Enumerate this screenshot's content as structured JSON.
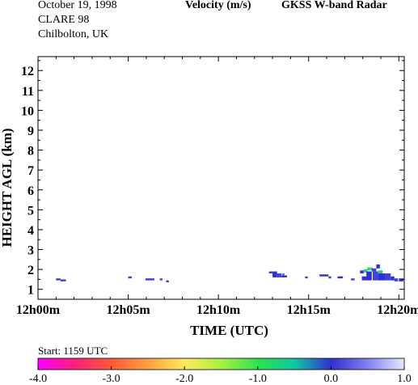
{
  "header": {
    "date": "October  19, 1998",
    "campaign": "CLARE 98",
    "site": "Chilbolton, UK",
    "quantity": "Velocity (m/s)",
    "instrument": "GKSS  W-band Radar"
  },
  "start_label": "Start: 1159 UTC",
  "chart_data": {
    "type": "heatmap",
    "title": "Velocity (m/s)",
    "xlabel": "TIME (UTC)",
    "ylabel": "HEIGHT AGL (km)",
    "xlim_min": [
      0,
      20.3
    ],
    "ylim_km": [
      0.5,
      12.7
    ],
    "x_ticks": [
      {
        "min": 0,
        "label": "12h00m"
      },
      {
        "min": 5,
        "label": "12h05m"
      },
      {
        "min": 10,
        "label": "12h10m"
      },
      {
        "min": 15,
        "label": "12h15m"
      },
      {
        "min": 20,
        "label": "12h20m"
      }
    ],
    "y_ticks": [
      1,
      2,
      3,
      4,
      5,
      6,
      7,
      8,
      9,
      10,
      11,
      12
    ],
    "colorbar": {
      "ticks": [
        "-4.0",
        "-3.0",
        "-2.0",
        "-1.0",
        "0.0",
        "1.0"
      ],
      "range": [
        -4,
        1
      ],
      "stops": [
        {
          "v": -4.0,
          "c": "#ff00ff"
        },
        {
          "v": -3.5,
          "c": "#ff1f7a"
        },
        {
          "v": -3.0,
          "c": "#ff5a3a"
        },
        {
          "v": -2.5,
          "c": "#ffa040"
        },
        {
          "v": -2.0,
          "c": "#ffe860"
        },
        {
          "v": -1.5,
          "c": "#a8f040"
        },
        {
          "v": -1.0,
          "c": "#30e050"
        },
        {
          "v": -0.5,
          "c": "#10c8a0"
        },
        {
          "v": 0.0,
          "c": "#3030d0"
        },
        {
          "v": 0.5,
          "c": "#8080f0"
        },
        {
          "v": 1.0,
          "c": "#e8e8ff"
        }
      ]
    },
    "echo_patches": [
      {
        "t0": 1.0,
        "t1": 1.25,
        "h0": 1.45,
        "h1": 1.55,
        "v": 0.1
      },
      {
        "t0": 1.25,
        "t1": 1.55,
        "h0": 1.4,
        "h1": 1.5,
        "v": 0.1
      },
      {
        "t0": 5.0,
        "t1": 5.2,
        "h0": 1.55,
        "h1": 1.65,
        "v": 0.1
      },
      {
        "t0": 5.95,
        "t1": 6.45,
        "h0": 1.45,
        "h1": 1.55,
        "v": 0.1
      },
      {
        "t0": 6.75,
        "t1": 6.9,
        "h0": 1.45,
        "h1": 1.55,
        "v": 0.1
      },
      {
        "t0": 7.1,
        "t1": 7.25,
        "h0": 1.35,
        "h1": 1.45,
        "v": 0.1
      },
      {
        "t0": 12.8,
        "t1": 13.0,
        "h0": 1.8,
        "h1": 1.9,
        "v": 0.1
      },
      {
        "t0": 13.0,
        "t1": 13.25,
        "h0": 1.6,
        "h1": 1.9,
        "v": 0.0
      },
      {
        "t0": 13.25,
        "t1": 13.5,
        "h0": 1.6,
        "h1": 1.8,
        "v": 0.1
      },
      {
        "t0": 13.5,
        "t1": 13.8,
        "h0": 1.6,
        "h1": 1.7,
        "v": 0.0
      },
      {
        "t0": 13.55,
        "t1": 13.65,
        "h0": 1.7,
        "h1": 1.8,
        "v": 0.1
      },
      {
        "t0": 14.8,
        "t1": 14.95,
        "h0": 1.55,
        "h1": 1.65,
        "v": 0.1
      },
      {
        "t0": 15.6,
        "t1": 16.1,
        "h0": 1.65,
        "h1": 1.75,
        "v": 0.0
      },
      {
        "t0": 16.1,
        "t1": 16.25,
        "h0": 1.55,
        "h1": 1.65,
        "v": 0.1
      },
      {
        "t0": 16.6,
        "t1": 16.9,
        "h0": 1.55,
        "h1": 1.65,
        "v": 0.0
      },
      {
        "t0": 17.35,
        "t1": 17.55,
        "h0": 1.45,
        "h1": 1.55,
        "v": 0.1
      },
      {
        "t0": 17.85,
        "t1": 18.05,
        "h0": 1.8,
        "h1": 1.95,
        "v": 0.0
      },
      {
        "t0": 17.95,
        "t1": 18.2,
        "h0": 1.45,
        "h1": 1.65,
        "v": 0.0
      },
      {
        "t0": 18.05,
        "t1": 18.25,
        "h0": 1.85,
        "h1": 2.0,
        "v": -0.6
      },
      {
        "t0": 18.2,
        "t1": 18.5,
        "h0": 1.45,
        "h1": 1.9,
        "v": 0.0
      },
      {
        "t0": 18.25,
        "t1": 18.55,
        "h0": 1.95,
        "h1": 2.1,
        "v": -1.0
      },
      {
        "t0": 18.5,
        "t1": 18.75,
        "h0": 1.9,
        "h1": 2.05,
        "v": 0.1
      },
      {
        "t0": 18.55,
        "t1": 18.85,
        "h0": 1.45,
        "h1": 1.9,
        "v": 0.1
      },
      {
        "t0": 18.75,
        "t1": 18.95,
        "h0": 2.05,
        "h1": 2.25,
        "v": 0.0
      },
      {
        "t0": 18.85,
        "t1": 19.1,
        "h0": 1.8,
        "h1": 1.95,
        "v": -0.8
      },
      {
        "t0": 18.85,
        "t1": 19.25,
        "h0": 1.45,
        "h1": 1.8,
        "v": 0.0
      },
      {
        "t0": 19.25,
        "t1": 19.55,
        "h0": 1.45,
        "h1": 1.8,
        "v": 0.1
      },
      {
        "t0": 19.55,
        "t1": 19.75,
        "h0": 1.45,
        "h1": 1.65,
        "v": 0.0
      },
      {
        "t0": 19.75,
        "t1": 19.95,
        "h0": 1.4,
        "h1": 1.55,
        "v": 0.1
      },
      {
        "t0": 20.0,
        "t1": 20.25,
        "h0": 1.4,
        "h1": 1.55,
        "v": 0.0
      }
    ]
  }
}
